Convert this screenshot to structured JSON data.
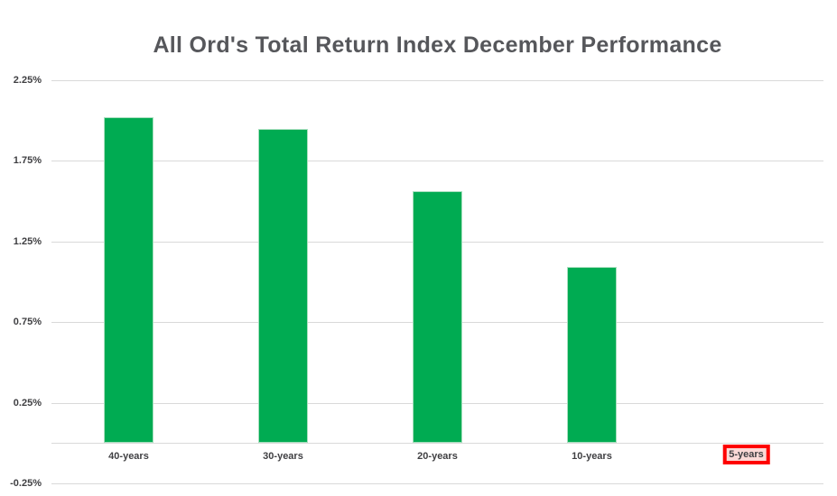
{
  "chart_data": {
    "type": "bar",
    "title": "All Ord's Total Return Index December Performance",
    "categories": [
      "40-years",
      "30-years",
      "20-years",
      "10-years",
      "5-years"
    ],
    "values": [
      2.02,
      1.95,
      1.56,
      1.09,
      0.0
    ],
    "unit": "%",
    "xlabel": "",
    "ylabel": "",
    "ylim": [
      -0.25,
      2.25
    ],
    "yticks": [
      2.25,
      1.75,
      1.25,
      0.75,
      0.25,
      -0.25
    ],
    "ytick_labels": [
      "2.25%",
      "1.75%",
      "1.25%",
      "0.75%",
      "0.25%",
      "-0.25%"
    ],
    "grid": true,
    "legend": false,
    "baseline_value": 0,
    "highlighted_category": "5-years",
    "colors": {
      "bar_fill": "#00ab52",
      "bar_border": "#a8dfbe",
      "gridline": "#d9d9d9",
      "title_text": "#56575b",
      "axis_text": "#3f3f42",
      "highlight_border": "#fe0000",
      "highlight_fill": "#fbd9d6",
      "background": "#ffffff"
    }
  }
}
